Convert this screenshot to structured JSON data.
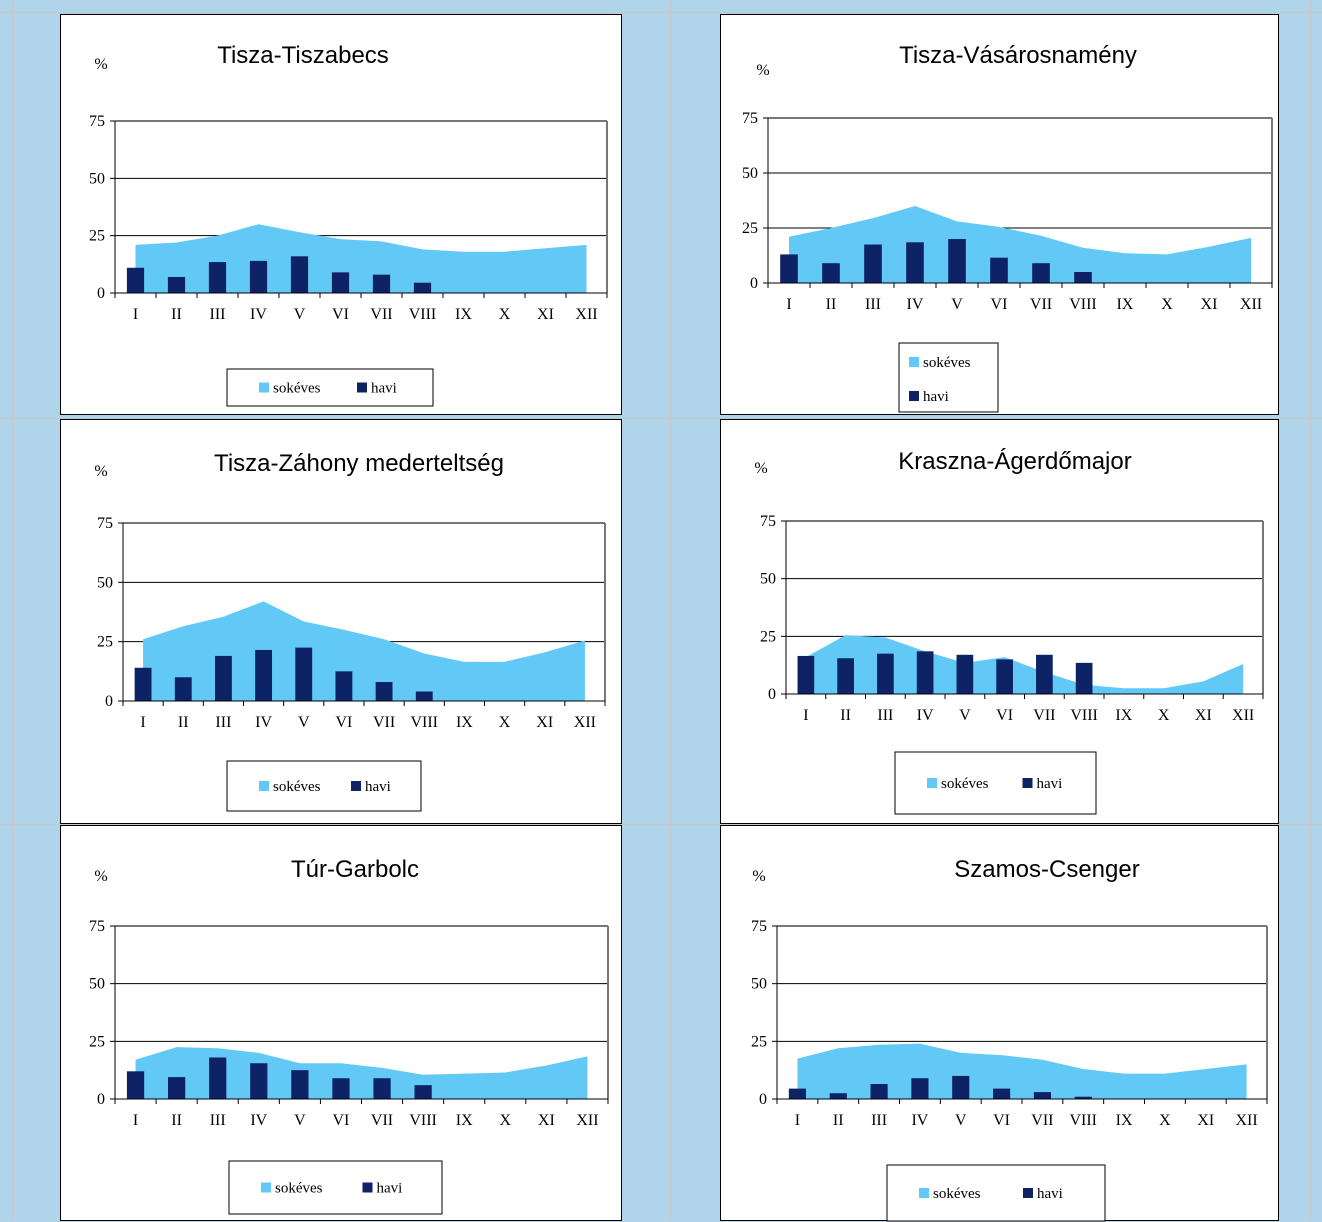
{
  "categories": [
    "I",
    "II",
    "III",
    "IV",
    "V",
    "VI",
    "VII",
    "VIII",
    "IX",
    "X",
    "XI",
    "XII"
  ],
  "y_unit": "%",
  "y_ticks": [
    "0",
    "25",
    "50",
    "75"
  ],
  "legend": {
    "area": "sokéves",
    "bar": "havi"
  },
  "colors": {
    "area": "#62c9f7",
    "bar": "#0d2366",
    "background": "#b0d4ea",
    "grid": "#000000",
    "frame": "#777777"
  },
  "chart_data": [
    {
      "type": "bar",
      "title": "Tisza-Tiszabecs",
      "ylabel": "%",
      "ylim": [
        0,
        75
      ],
      "grid": true,
      "legend_position": "bottom",
      "categories": [
        "I",
        "II",
        "III",
        "IV",
        "V",
        "VI",
        "VII",
        "VIII",
        "IX",
        "X",
        "XI",
        "XII"
      ],
      "series": [
        {
          "name": "sokéves",
          "type": "area",
          "values": [
            21,
            22,
            25,
            30,
            26.5,
            23.5,
            22.5,
            19,
            18,
            18,
            19.5,
            21
          ]
        },
        {
          "name": "havi",
          "type": "bar",
          "values": [
            11,
            7,
            13.5,
            14,
            16,
            9,
            8,
            4.5,
            null,
            null,
            null,
            null
          ]
        }
      ]
    },
    {
      "type": "bar",
      "title": "Tisza-Vásárosnamény",
      "ylabel": "%",
      "ylim": [
        0,
        75
      ],
      "grid": true,
      "legend_position": "bottom",
      "categories": [
        "I",
        "II",
        "III",
        "IV",
        "V",
        "VI",
        "VII",
        "VIII",
        "IX",
        "X",
        "XI",
        "XII"
      ],
      "series": [
        {
          "name": "sokéves",
          "type": "area",
          "values": [
            21,
            25,
            29.5,
            35,
            28,
            25.5,
            21.5,
            16,
            13.5,
            13,
            16.5,
            20.5
          ]
        },
        {
          "name": "havi",
          "type": "bar",
          "values": [
            13,
            9,
            17.5,
            18.5,
            20,
            11.5,
            9,
            5,
            null,
            null,
            null,
            null
          ]
        }
      ]
    },
    {
      "type": "bar",
      "title": "Tisza-Záhony mederteltség",
      "ylabel": "%",
      "ylim": [
        0,
        75
      ],
      "grid": true,
      "legend_position": "bottom",
      "categories": [
        "I",
        "II",
        "III",
        "IV",
        "V",
        "VI",
        "VII",
        "VIII",
        "IX",
        "X",
        "XI",
        "XII"
      ],
      "series": [
        {
          "name": "sokéves",
          "type": "area",
          "values": [
            26,
            31.5,
            35.5,
            42,
            33.5,
            30,
            26,
            20,
            16.5,
            16.5,
            20.5,
            25.5
          ]
        },
        {
          "name": "havi",
          "type": "bar",
          "values": [
            14,
            10,
            19,
            21.5,
            22.5,
            12.5,
            8,
            4,
            null,
            null,
            null,
            null
          ]
        }
      ]
    },
    {
      "type": "bar",
      "title": "Kraszna-Ágerdőmajor",
      "ylabel": "%",
      "ylim": [
        0,
        75
      ],
      "grid": true,
      "legend_position": "bottom",
      "categories": [
        "I",
        "II",
        "III",
        "IV",
        "V",
        "VI",
        "VII",
        "VIII",
        "IX",
        "X",
        "XI",
        "XII"
      ],
      "series": [
        {
          "name": "sokéves",
          "type": "area",
          "values": [
            16,
            25.5,
            24.5,
            18.5,
            13.5,
            16,
            9.5,
            4,
            2.5,
            2.5,
            5.5,
            13
          ]
        },
        {
          "name": "havi",
          "type": "bar",
          "values": [
            16.5,
            15.5,
            17.5,
            18.5,
            17,
            15,
            17,
            13.5,
            null,
            null,
            null,
            null
          ]
        }
      ]
    },
    {
      "type": "bar",
      "title": "Túr-Garbolc",
      "ylabel": "%",
      "ylim": [
        0,
        75
      ],
      "grid": true,
      "legend_position": "bottom",
      "categories": [
        "I",
        "II",
        "III",
        "IV",
        "V",
        "VI",
        "VII",
        "VIII",
        "IX",
        "X",
        "XI",
        "XII"
      ],
      "series": [
        {
          "name": "sokéves",
          "type": "area",
          "values": [
            17,
            22.5,
            22,
            20,
            15.5,
            15.5,
            13.5,
            10.5,
            11,
            11.5,
            14.5,
            18.5
          ]
        },
        {
          "name": "havi",
          "type": "bar",
          "values": [
            12,
            9.5,
            18,
            15.5,
            12.5,
            9,
            9,
            6,
            null,
            null,
            null,
            null
          ]
        }
      ]
    },
    {
      "type": "bar",
      "title": "Szamos-Csenger",
      "ylabel": "%",
      "ylim": [
        0,
        75
      ],
      "grid": true,
      "legend_position": "bottom",
      "categories": [
        "I",
        "II",
        "III",
        "IV",
        "V",
        "VI",
        "VII",
        "VIII",
        "IX",
        "X",
        "XI",
        "XII"
      ],
      "series": [
        {
          "name": "sokéves",
          "type": "area",
          "values": [
            17.5,
            22,
            23.5,
            24,
            20,
            19,
            17,
            13,
            11,
            11,
            13,
            15
          ]
        },
        {
          "name": "havi",
          "type": "bar",
          "values": [
            4.5,
            2.5,
            6.5,
            9,
            10,
            4.5,
            3,
            1,
            null,
            null,
            null,
            null
          ]
        }
      ]
    }
  ]
}
